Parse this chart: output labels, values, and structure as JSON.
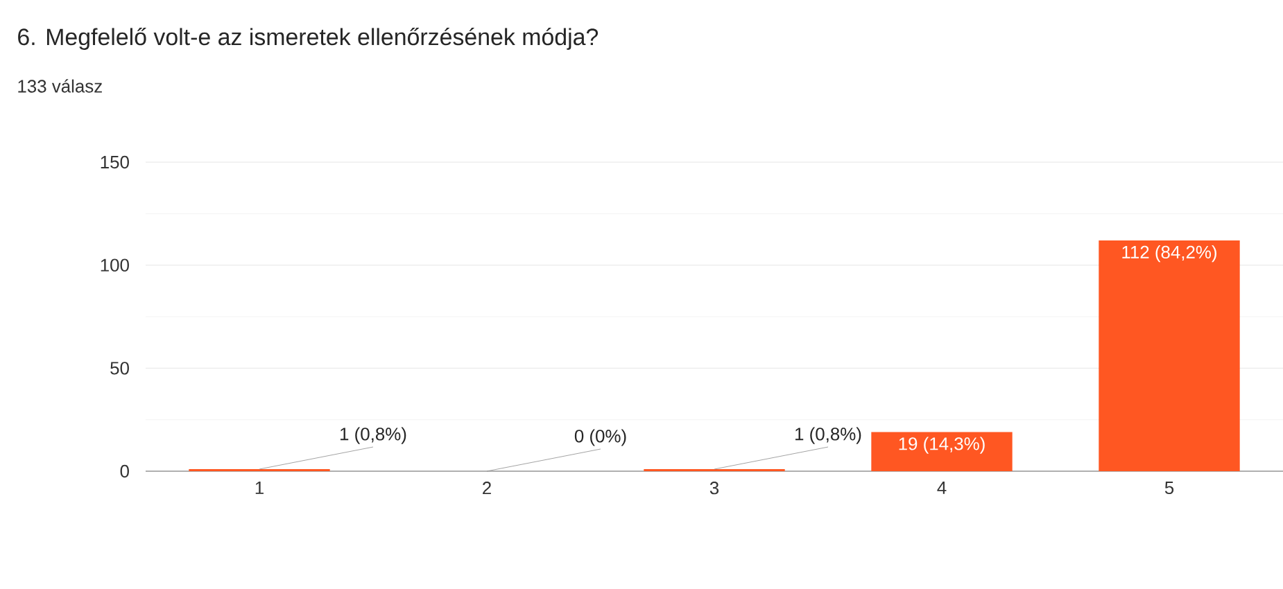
{
  "chart_data": {
    "type": "bar",
    "title": "6. Megfelelő volt-e az ismeretek ellenőrzésének módja?",
    "subtitle": "133 válasz",
    "categories": [
      "1",
      "2",
      "3",
      "4",
      "5"
    ],
    "values": [
      1,
      0,
      1,
      19,
      112
    ],
    "value_labels": [
      "1 (0,8%)",
      "0 (0%)",
      "1 (0,8%)",
      "19 (14,3%)",
      "112 (84,2%)"
    ],
    "color": "#ff5722",
    "ylim": [
      0,
      150
    ],
    "yticks": [
      0,
      50,
      100,
      150
    ],
    "grid": "y"
  }
}
